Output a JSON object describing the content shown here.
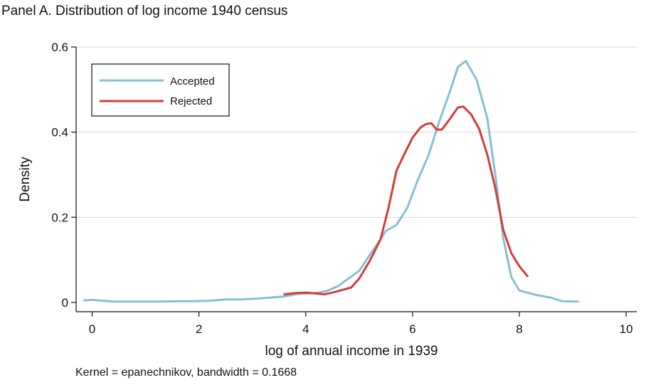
{
  "chart_data": {
    "type": "line",
    "title": "Panel A. Distribution of log income 1940 census",
    "xlabel": "log of annual income in 1939",
    "ylabel": "Density",
    "note": "Kernel = epanechnikov, bandwidth = 0.1668",
    "xlim": [
      -0.3,
      10.2
    ],
    "ylim": [
      0,
      0.6
    ],
    "x_ticks": [
      0,
      2,
      4,
      6,
      8,
      10
    ],
    "x_tick_labels": [
      "0",
      "2",
      "4",
      "6",
      "8",
      "10"
    ],
    "y_ticks": [
      0,
      0.2,
      0.4,
      0.6
    ],
    "y_tick_labels": [
      "0",
      "0.2",
      "0.4",
      "0.6"
    ],
    "grid": true,
    "legend_position": "top-left",
    "series": [
      {
        "name": "Accepted",
        "color": "#86bfd4",
        "points": [
          [
            -0.15,
            0.005
          ],
          [
            0.0,
            0.006
          ],
          [
            0.2,
            0.004
          ],
          [
            0.4,
            0.002
          ],
          [
            0.7,
            0.002
          ],
          [
            1.0,
            0.002
          ],
          [
            1.3,
            0.002
          ],
          [
            1.6,
            0.003
          ],
          [
            1.9,
            0.003
          ],
          [
            2.2,
            0.004
          ],
          [
            2.5,
            0.007
          ],
          [
            2.8,
            0.007
          ],
          [
            3.1,
            0.009
          ],
          [
            3.4,
            0.012
          ],
          [
            3.6,
            0.014
          ],
          [
            3.8,
            0.019
          ],
          [
            4.0,
            0.021
          ],
          [
            4.2,
            0.022
          ],
          [
            4.4,
            0.027
          ],
          [
            4.6,
            0.038
          ],
          [
            4.8,
            0.056
          ],
          [
            5.0,
            0.074
          ],
          [
            5.2,
            0.112
          ],
          [
            5.4,
            0.148
          ],
          [
            5.5,
            0.168
          ],
          [
            5.7,
            0.182
          ],
          [
            5.9,
            0.222
          ],
          [
            6.1,
            0.288
          ],
          [
            6.3,
            0.346
          ],
          [
            6.5,
            0.425
          ],
          [
            6.7,
            0.495
          ],
          [
            6.85,
            0.553
          ],
          [
            7.0,
            0.567
          ],
          [
            7.2,
            0.523
          ],
          [
            7.4,
            0.432
          ],
          [
            7.55,
            0.3
          ],
          [
            7.7,
            0.15
          ],
          [
            7.85,
            0.06
          ],
          [
            8.0,
            0.028
          ],
          [
            8.3,
            0.018
          ],
          [
            8.6,
            0.011
          ],
          [
            8.8,
            0.003
          ],
          [
            9.1,
            0.002
          ]
        ]
      },
      {
        "name": "Rejected",
        "color": "#d43c3c",
        "points": [
          [
            3.6,
            0.019
          ],
          [
            3.8,
            0.022
          ],
          [
            4.0,
            0.023
          ],
          [
            4.2,
            0.021
          ],
          [
            4.35,
            0.019
          ],
          [
            4.5,
            0.023
          ],
          [
            4.7,
            0.03
          ],
          [
            4.85,
            0.035
          ],
          [
            5.0,
            0.056
          ],
          [
            5.2,
            0.098
          ],
          [
            5.4,
            0.148
          ],
          [
            5.55,
            0.222
          ],
          [
            5.7,
            0.31
          ],
          [
            5.85,
            0.349
          ],
          [
            6.0,
            0.387
          ],
          [
            6.15,
            0.411
          ],
          [
            6.25,
            0.419
          ],
          [
            6.35,
            0.421
          ],
          [
            6.45,
            0.406
          ],
          [
            6.55,
            0.406
          ],
          [
            6.7,
            0.431
          ],
          [
            6.85,
            0.458
          ],
          [
            6.95,
            0.46
          ],
          [
            7.1,
            0.441
          ],
          [
            7.25,
            0.407
          ],
          [
            7.4,
            0.347
          ],
          [
            7.55,
            0.269
          ],
          [
            7.7,
            0.17
          ],
          [
            7.85,
            0.116
          ],
          [
            8.0,
            0.085
          ],
          [
            8.15,
            0.062
          ]
        ]
      }
    ]
  }
}
